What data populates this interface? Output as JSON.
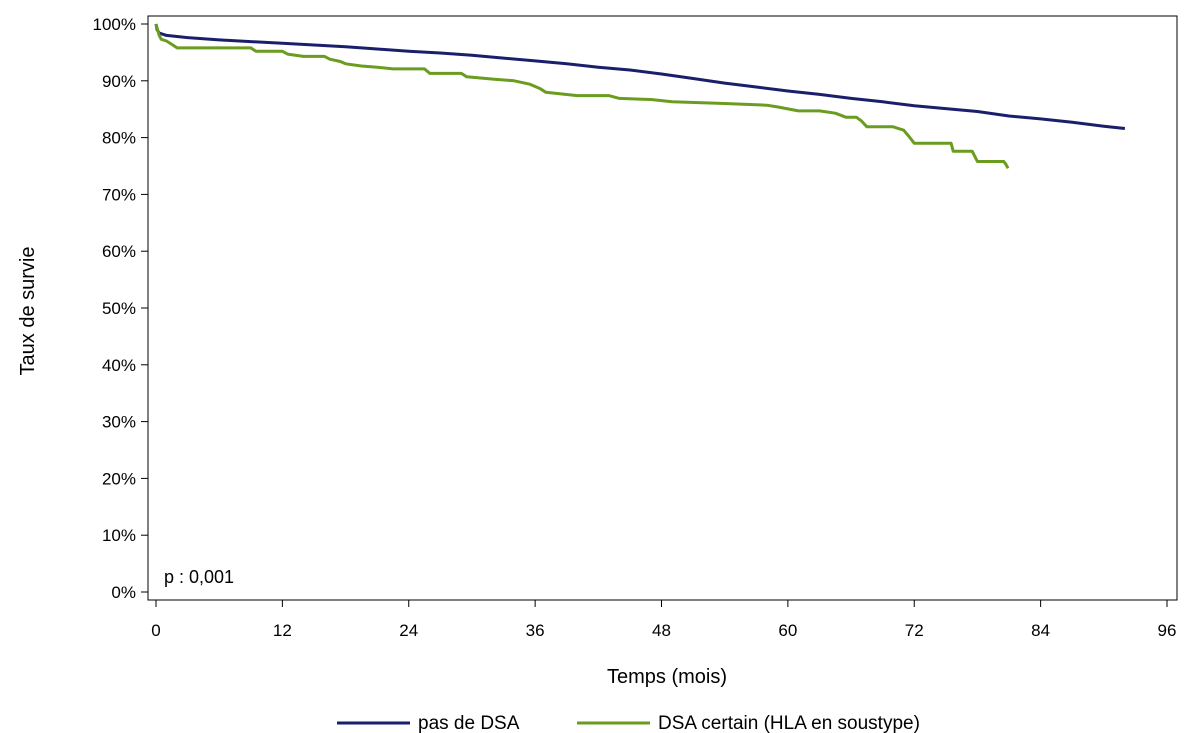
{
  "chart_data": {
    "type": "line",
    "xlabel": "Temps (mois)",
    "ylabel": "Taux de survie",
    "xlim": [
      0,
      96
    ],
    "ylim": [
      0,
      100
    ],
    "x_ticks": [
      0,
      12,
      24,
      36,
      48,
      60,
      72,
      84,
      96
    ],
    "x_tick_labels": [
      "0",
      "12",
      "24",
      "36",
      "48",
      "60",
      "72",
      "84",
      "96"
    ],
    "y_ticks": [
      0,
      10,
      20,
      30,
      40,
      50,
      60,
      70,
      80,
      90,
      100
    ],
    "y_tick_labels": [
      "0%",
      "10%",
      "20%",
      "30%",
      "40%",
      "50%",
      "60%",
      "70%",
      "80%",
      "90%",
      "100%"
    ],
    "annotation": "p : 0,001",
    "legend_position": "bottom",
    "grid": false,
    "series": [
      {
        "name": "pas de DSA",
        "color": "#1a1f6b",
        "points": [
          [
            0,
            100
          ],
          [
            0.1,
            99
          ],
          [
            0.3,
            98.4
          ],
          [
            1,
            98
          ],
          [
            3,
            97.6
          ],
          [
            6,
            97.2
          ],
          [
            9,
            96.9
          ],
          [
            12,
            96.6
          ],
          [
            15,
            96.3
          ],
          [
            18,
            96
          ],
          [
            21,
            95.6
          ],
          [
            24,
            95.2
          ],
          [
            27,
            94.9
          ],
          [
            30,
            94.5
          ],
          [
            33,
            94
          ],
          [
            36,
            93.5
          ],
          [
            39,
            93
          ],
          [
            42,
            92.4
          ],
          [
            45,
            91.9
          ],
          [
            48,
            91.2
          ],
          [
            51,
            90.4
          ],
          [
            54,
            89.6
          ],
          [
            57,
            88.9
          ],
          [
            60,
            88.2
          ],
          [
            63,
            87.6
          ],
          [
            66,
            86.9
          ],
          [
            69,
            86.3
          ],
          [
            72,
            85.6
          ],
          [
            75,
            85.1
          ],
          [
            78,
            84.6
          ],
          [
            81,
            83.8
          ],
          [
            84,
            83.3
          ],
          [
            87,
            82.7
          ],
          [
            90,
            82
          ],
          [
            92,
            81.6
          ]
        ]
      },
      {
        "name": "DSA certain (HLA en soustype)",
        "color": "#6a9c1f",
        "points": [
          [
            0,
            100
          ],
          [
            0.15,
            99
          ],
          [
            0.3,
            98
          ],
          [
            0.5,
            97.3
          ],
          [
            1,
            97
          ],
          [
            1.5,
            96.4
          ],
          [
            2,
            95.8
          ],
          [
            4.5,
            95.8
          ],
          [
            9,
            95.8
          ],
          [
            9.5,
            95.2
          ],
          [
            12,
            95.2
          ],
          [
            12.5,
            94.7
          ],
          [
            14,
            94.3
          ],
          [
            16,
            94.3
          ],
          [
            16.5,
            93.8
          ],
          [
            17.5,
            93.4
          ],
          [
            18,
            93
          ],
          [
            19.5,
            92.6
          ],
          [
            21,
            92.4
          ],
          [
            22.5,
            92.1
          ],
          [
            25.5,
            92.1
          ],
          [
            26,
            91.3
          ],
          [
            29,
            91.3
          ],
          [
            29.5,
            90.7
          ],
          [
            32,
            90.3
          ],
          [
            34,
            90
          ],
          [
            35.5,
            89.4
          ],
          [
            36.5,
            88.6
          ],
          [
            37,
            88
          ],
          [
            40,
            87.4
          ],
          [
            42,
            87.4
          ],
          [
            43,
            87.4
          ],
          [
            44,
            86.9
          ],
          [
            47,
            86.7
          ],
          [
            49,
            86.3
          ],
          [
            54,
            86
          ],
          [
            57,
            85.8
          ],
          [
            58,
            85.7
          ],
          [
            59,
            85.4
          ],
          [
            61,
            84.7
          ],
          [
            63,
            84.7
          ],
          [
            64.5,
            84.3
          ],
          [
            65.5,
            83.6
          ],
          [
            66.5,
            83.6
          ],
          [
            67,
            82.9
          ],
          [
            67.5,
            81.9
          ],
          [
            70,
            81.9
          ],
          [
            71,
            81.3
          ],
          [
            71.5,
            80.2
          ],
          [
            72,
            79
          ],
          [
            75.5,
            79
          ],
          [
            75.7,
            77.6
          ],
          [
            77.5,
            77.6
          ],
          [
            78,
            75.8
          ],
          [
            80.5,
            75.8
          ],
          [
            80.7,
            75.3
          ],
          [
            80.9,
            74.6
          ]
        ]
      }
    ]
  }
}
